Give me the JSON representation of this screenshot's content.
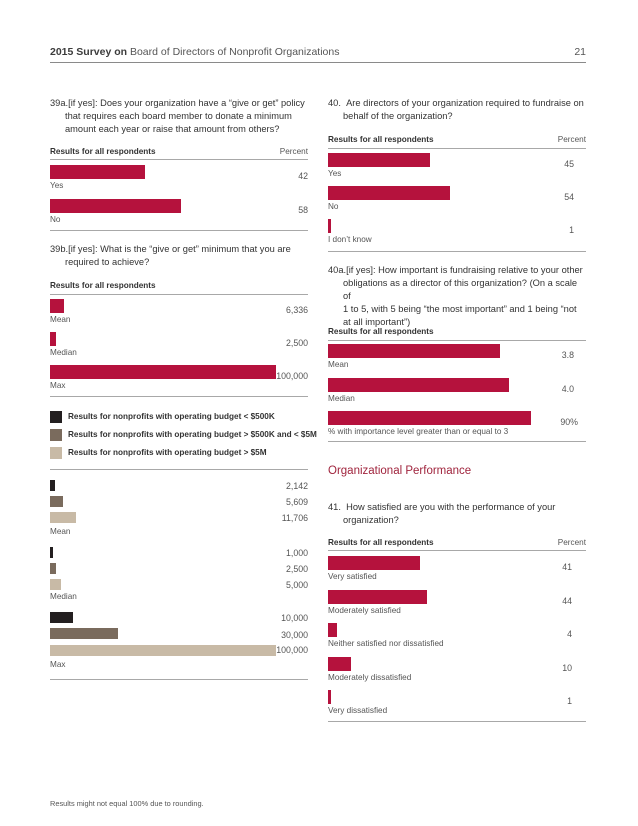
{
  "header": {
    "title_bold": "2015 Survey on",
    "title_rest": " Board of Directors of Nonprofit Organizations",
    "page_number": "21"
  },
  "colors": {
    "accent": "#b5123d",
    "dark": "#231f20",
    "mid": "#7a6b5d",
    "light": "#c8baa6"
  },
  "q39a": {
    "number": "39a.",
    "text_line1": "[if yes]: Does your organization have a “give or get” policy",
    "text_line2": "that requires each board member to donate a minimum",
    "text_line3": "amount each year or raise that amount from others?",
    "results_label": "Results for all respondents",
    "percent_label": "Percent",
    "rows": [
      {
        "label": "Yes",
        "value": "42",
        "pct": 42
      },
      {
        "label": "No",
        "value": "58",
        "pct": 58
      }
    ]
  },
  "q39b": {
    "number": "39b.",
    "text_line1": "[if yes]: What is the “give or get” minimum that you are",
    "text_line2": "required to achieve?",
    "results_label": "Results for all respondents",
    "rows": [
      {
        "label": "Mean",
        "value": "6,336",
        "amount": 6336
      },
      {
        "label": "Median",
        "value": "2,500",
        "amount": 2500
      },
      {
        "label": "Max",
        "value": "100,000",
        "amount": 100000
      }
    ],
    "legend": [
      "Results for nonprofits with operating budget < $500K",
      "Results for nonprofits with operating budget > $500K and < $5M",
      "Results for nonprofits with operating budget > $5M"
    ],
    "groups": [
      {
        "label": "Mean",
        "values": [
          "2,142",
          "5,609",
          "11,706"
        ],
        "amounts": [
          2142,
          5609,
          11706
        ]
      },
      {
        "label": "Median",
        "values": [
          "1,000",
          "2,500",
          "5,000"
        ],
        "amounts": [
          1000,
          2500,
          5000
        ]
      },
      {
        "label": "Max",
        "values": [
          "10,000",
          "30,000",
          "100,000"
        ],
        "amounts": [
          10000,
          30000,
          100000
        ]
      }
    ]
  },
  "q40": {
    "number": "40.",
    "text_line1": "Are directors of your organization required to fundraise on",
    "text_line2": "behalf of the organization?",
    "results_label": "Results for all respondents",
    "percent_label": "Percent",
    "rows": [
      {
        "label": "Yes",
        "value": "45",
        "pct": 45
      },
      {
        "label": "No",
        "value": "54",
        "pct": 54
      },
      {
        "label": "I don’t know",
        "value": "1",
        "pct": 1
      }
    ]
  },
  "q40a": {
    "number": "40a.",
    "text_line1": "[if yes]: How important is fundraising relative to your other",
    "text_line2": "obligations as a director of this organization? (On a scale of",
    "text_line3": "1 to 5, with 5 being “the most important” and 1 being “not",
    "text_line4": "at all important”)",
    "results_label": "Results for all respondents",
    "rows": [
      {
        "label": "Mean",
        "value": "3.8",
        "fraction": 0.76
      },
      {
        "label": "Median",
        "value": "4.0",
        "fraction": 0.8
      },
      {
        "label": "% with importance level greater than or equal to 3",
        "value": "90%",
        "fraction": 0.9
      }
    ]
  },
  "section_title": "Organizational Performance",
  "q41": {
    "number": "41.",
    "text_line1": "How satisfied are you with the performance of your",
    "text_line2": "organization?",
    "results_label": "Results for all respondents",
    "percent_label": "Percent",
    "rows": [
      {
        "label": "Very satisfied",
        "value": "41",
        "pct": 41
      },
      {
        "label": "Moderately satisfied",
        "value": "44",
        "pct": 44
      },
      {
        "label": "Neither satisfied nor dissatisfied",
        "value": "4",
        "pct": 4
      },
      {
        "label": "Moderately dissatisfied",
        "value": "10",
        "pct": 10
      },
      {
        "label": "Very dissatisfied",
        "value": "1",
        "pct": 1
      }
    ]
  },
  "footnote": "Results might not equal 100% due to rounding."
}
